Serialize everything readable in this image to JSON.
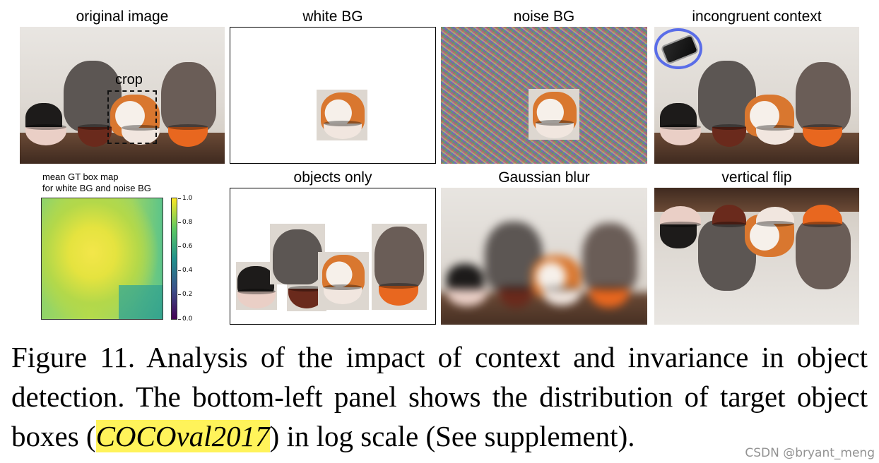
{
  "panels": {
    "original": {
      "title": "original image",
      "crop_label": "crop"
    },
    "white_bg": {
      "title": "white BG"
    },
    "noise_bg": {
      "title": "noise BG"
    },
    "incongruent": {
      "title": "incongruent context"
    },
    "heatmap": {
      "title_line1": "mean GT box map",
      "title_line2": "for white BG and noise BG",
      "colorbar_ticks": [
        "1.0",
        "0.8",
        "0.6",
        "0.4",
        "0.2",
        "0.0"
      ]
    },
    "objects_only": {
      "title": "objects only"
    },
    "gaussian_blur": {
      "title": "Gaussian blur"
    },
    "vertical_flip": {
      "title": "vertical flip"
    }
  },
  "caption": {
    "part1": "Figure 11. Analysis of the impact of context and invariance in object detection. The bottom-left panel shows the distribution of target object boxes (",
    "highlight": "COCOval2017",
    "part2": ") in log scale (See supplement)."
  },
  "watermark": "CSDN @bryant_meng",
  "colors": {
    "highlight": "#fff35a",
    "phone_ring": "#5a6de8"
  }
}
